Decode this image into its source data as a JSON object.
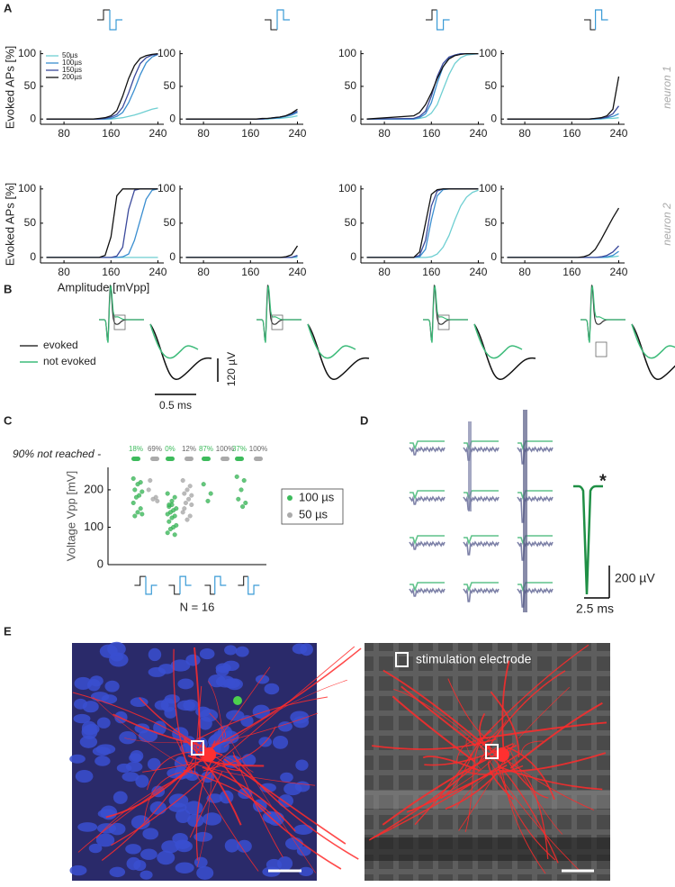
{
  "figure": {
    "panel_letters": [
      "A",
      "B",
      "C",
      "D",
      "E"
    ],
    "b_legend": [
      "evoked",
      "not evoked"
    ],
    "b_scale_v": "120 µV",
    "b_scale_t": "0.5 ms",
    "d_star": "*",
    "d_scale_v": "200 µV",
    "d_scale_t": "2.5 ms",
    "e_label": "stimulation electrode"
  },
  "chart_data": [
    {
      "type": "line",
      "ylabel": "Evoked APs [%]",
      "legend": "upper left",
      "x": [
        50,
        130,
        140,
        150,
        160,
        170,
        180,
        190,
        200,
        210,
        220,
        230,
        240
      ],
      "xlim": [
        40,
        250
      ],
      "ylim": [
        -8,
        105
      ],
      "xticks": [
        80,
        160,
        240
      ],
      "yticks": [
        0,
        50,
        100
      ],
      "series": [
        {
          "name": "50µs",
          "color": "#6fcfd2",
          "values": [
            0,
            0,
            0,
            0,
            0,
            1,
            2,
            4,
            6,
            9,
            12,
            15,
            17
          ]
        },
        {
          "name": "100µs",
          "color": "#3a8ed0",
          "values": [
            0,
            0,
            0,
            0,
            1,
            4,
            10,
            25,
            45,
            68,
            86,
            95,
            99
          ]
        },
        {
          "name": "150µs",
          "color": "#3b4a9c",
          "values": [
            0,
            0,
            0,
            1,
            3,
            7,
            18,
            40,
            65,
            85,
            94,
            98,
            99
          ]
        },
        {
          "name": "200µs",
          "color": "#111111",
          "values": [
            0,
            0,
            1,
            2,
            5,
            13,
            35,
            62,
            82,
            93,
            97,
            99,
            100
          ]
        }
      ]
    },
    {
      "type": "line",
      "x": [
        50,
        130,
        140,
        150,
        160,
        170,
        180,
        190,
        200,
        210,
        220,
        230,
        240
      ],
      "xlim": [
        40,
        250
      ],
      "ylim": [
        -8,
        105
      ],
      "xticks": [
        80,
        160,
        240
      ],
      "yticks": [
        0,
        50,
        100
      ],
      "series": [
        {
          "color": "#6fcfd2",
          "values": [
            0,
            0,
            0,
            0,
            0,
            0,
            0,
            0,
            1,
            1,
            2,
            3,
            5
          ]
        },
        {
          "color": "#3a8ed0",
          "values": [
            0,
            0,
            0,
            0,
            0,
            0,
            0,
            1,
            1,
            2,
            4,
            6,
            10
          ]
        },
        {
          "color": "#3b4a9c",
          "values": [
            0,
            0,
            0,
            0,
            0,
            0,
            0,
            1,
            2,
            3,
            5,
            8,
            12
          ]
        },
        {
          "color": "#111111",
          "values": [
            0,
            0,
            0,
            0,
            0,
            0,
            1,
            1,
            2,
            3,
            5,
            9,
            15
          ]
        }
      ]
    },
    {
      "type": "line",
      "x": [
        50,
        130,
        140,
        150,
        160,
        170,
        180,
        190,
        200,
        210,
        220,
        230,
        240
      ],
      "xlim": [
        40,
        250
      ],
      "ylim": [
        -8,
        105
      ],
      "xticks": [
        80,
        160,
        240
      ],
      "yticks": [
        0,
        50,
        100
      ],
      "series": [
        {
          "color": "#6fcfd2",
          "values": [
            0,
            0,
            1,
            3,
            9,
            22,
            45,
            68,
            85,
            94,
            98,
            99,
            100
          ]
        },
        {
          "color": "#3a8ed0",
          "values": [
            0,
            0,
            2,
            8,
            25,
            55,
            80,
            93,
            98,
            100,
            100,
            100,
            100
          ]
        },
        {
          "color": "#3b4a9c",
          "values": [
            0,
            1,
            4,
            12,
            35,
            65,
            85,
            95,
            98,
            100,
            100,
            100,
            100
          ]
        },
        {
          "color": "#111111",
          "values": [
            0,
            5,
            10,
            22,
            40,
            62,
            80,
            92,
            97,
            99,
            100,
            100,
            100
          ]
        }
      ]
    },
    {
      "type": "line",
      "annotation": "neuron 1",
      "x": [
        50,
        130,
        140,
        150,
        160,
        170,
        180,
        190,
        200,
        210,
        220,
        230,
        240
      ],
      "xlim": [
        40,
        250
      ],
      "ylim": [
        -8,
        105
      ],
      "xticks": [
        80,
        160,
        240
      ],
      "yticks": [
        0,
        50,
        100
      ],
      "series": [
        {
          "color": "#6fcfd2",
          "values": [
            0,
            0,
            0,
            0,
            0,
            0,
            0,
            0,
            0,
            0,
            1,
            1,
            2
          ]
        },
        {
          "color": "#3a8ed0",
          "values": [
            0,
            0,
            0,
            0,
            0,
            0,
            0,
            0,
            0,
            1,
            2,
            4,
            8
          ]
        },
        {
          "color": "#3b4a9c",
          "values": [
            0,
            0,
            0,
            0,
            0,
            0,
            0,
            0,
            1,
            1,
            3,
            8,
            20
          ]
        },
        {
          "color": "#111111",
          "values": [
            0,
            0,
            0,
            0,
            0,
            0,
            0,
            0,
            1,
            2,
            5,
            15,
            65
          ]
        }
      ]
    },
    {
      "type": "line",
      "ylabel": "Evoked APs [%]",
      "xlabel": "Amplitude [mVpp]",
      "x": [
        50,
        130,
        140,
        150,
        160,
        170,
        180,
        190,
        200,
        210,
        220,
        230,
        240
      ],
      "xlim": [
        40,
        250
      ],
      "ylim": [
        -8,
        105
      ],
      "xticks": [
        80,
        160,
        240
      ],
      "yticks": [
        0,
        50,
        100
      ],
      "series": [
        {
          "color": "#6fcfd2",
          "values": [
            0,
            0,
            0,
            0,
            0,
            0,
            0,
            0,
            0,
            0,
            0,
            0,
            0
          ]
        },
        {
          "color": "#3a8ed0",
          "values": [
            0,
            0,
            0,
            0,
            0,
            0,
            1,
            5,
            25,
            55,
            85,
            98,
            100
          ]
        },
        {
          "color": "#3b4a9c",
          "values": [
            0,
            0,
            0,
            0,
            0,
            2,
            15,
            70,
            98,
            100,
            100,
            100,
            100
          ]
        },
        {
          "color": "#111111",
          "values": [
            0,
            0,
            0,
            3,
            30,
            90,
            100,
            100,
            100,
            100,
            100,
            100,
            100
          ]
        }
      ]
    },
    {
      "type": "line",
      "x": [
        50,
        130,
        140,
        150,
        160,
        170,
        180,
        190,
        200,
        210,
        220,
        230,
        240
      ],
      "xlim": [
        40,
        250
      ],
      "ylim": [
        -8,
        105
      ],
      "xticks": [
        80,
        160,
        240
      ],
      "yticks": [
        0,
        50,
        100
      ],
      "series": [
        {
          "color": "#6fcfd2",
          "values": [
            0,
            0,
            0,
            0,
            0,
            0,
            0,
            0,
            0,
            0,
            0,
            0,
            0
          ]
        },
        {
          "color": "#3a8ed0",
          "values": [
            0,
            0,
            0,
            0,
            0,
            0,
            0,
            0,
            0,
            0,
            0,
            0,
            2
          ]
        },
        {
          "color": "#3b4a9c",
          "values": [
            0,
            0,
            0,
            0,
            0,
            0,
            0,
            0,
            0,
            0,
            0,
            0,
            3
          ]
        },
        {
          "color": "#111111",
          "values": [
            0,
            0,
            0,
            0,
            0,
            0,
            0,
            0,
            0,
            0,
            1,
            4,
            17
          ]
        }
      ]
    },
    {
      "type": "line",
      "x": [
        50,
        130,
        140,
        150,
        160,
        170,
        180,
        190,
        200,
        210,
        220,
        230,
        240
      ],
      "xlim": [
        40,
        250
      ],
      "ylim": [
        -8,
        105
      ],
      "xticks": [
        80,
        160,
        240
      ],
      "yticks": [
        0,
        50,
        100
      ],
      "series": [
        {
          "color": "#6fcfd2",
          "values": [
            0,
            0,
            0,
            0,
            1,
            5,
            15,
            32,
            55,
            75,
            88,
            95,
            98
          ]
        },
        {
          "color": "#3a8ed0",
          "values": [
            0,
            0,
            1,
            12,
            55,
            90,
            99,
            100,
            100,
            100,
            100,
            100,
            100
          ]
        },
        {
          "color": "#3b4a9c",
          "values": [
            0,
            0,
            3,
            25,
            75,
            97,
            100,
            100,
            100,
            100,
            100,
            100,
            100
          ]
        },
        {
          "color": "#111111",
          "values": [
            0,
            0,
            8,
            50,
            92,
            99,
            100,
            100,
            100,
            100,
            100,
            100,
            100
          ]
        }
      ]
    },
    {
      "type": "line",
      "annotation": "neuron 2",
      "x": [
        50,
        130,
        140,
        150,
        160,
        170,
        180,
        190,
        200,
        210,
        220,
        230,
        240
      ],
      "xlim": [
        40,
        250
      ],
      "ylim": [
        -8,
        105
      ],
      "xticks": [
        80,
        160,
        240
      ],
      "yticks": [
        0,
        50,
        100
      ],
      "series": [
        {
          "color": "#6fcfd2",
          "values": [
            0,
            0,
            0,
            0,
            0,
            0,
            0,
            0,
            0,
            0,
            0,
            1,
            2
          ]
        },
        {
          "color": "#3a8ed0",
          "values": [
            0,
            0,
            0,
            0,
            0,
            0,
            0,
            0,
            0,
            0,
            1,
            3,
            9
          ]
        },
        {
          "color": "#3b4a9c",
          "values": [
            0,
            0,
            0,
            0,
            0,
            0,
            0,
            0,
            0,
            1,
            3,
            8,
            17
          ]
        },
        {
          "color": "#111111",
          "values": [
            0,
            0,
            0,
            0,
            0,
            0,
            1,
            4,
            12,
            26,
            42,
            58,
            72
          ]
        }
      ]
    },
    {
      "type": "scatter",
      "ylabel": "Voltage Vpp [mV]",
      "note": "N = 16",
      "row_label": "90% not reached -",
      "categories": [
        null,
        null,
        null,
        null
      ],
      "ylim": [
        0,
        260
      ],
      "yticks": [
        0,
        100,
        200
      ],
      "not_reached": [
        [
          "18%",
          "69%"
        ],
        [
          "0%",
          "12%"
        ],
        [
          "87%",
          "100%"
        ],
        [
          "37%",
          "100%"
        ]
      ],
      "series": [
        {
          "name": "100 µs",
          "color": "#3dbb5c",
          "category": [
            0,
            0,
            0,
            0,
            0,
            0,
            0,
            0,
            0,
            0,
            0,
            0,
            1,
            1,
            1,
            1,
            1,
            1,
            1,
            1,
            1,
            1,
            1,
            1,
            1,
            1,
            1,
            1,
            1,
            1,
            2,
            2,
            2,
            3,
            3,
            3,
            3,
            3,
            3
          ],
          "values": [
            230,
            220,
            215,
            200,
            195,
            185,
            180,
            165,
            150,
            140,
            130,
            135,
            190,
            180,
            160,
            155,
            150,
            145,
            140,
            135,
            130,
            125,
            115,
            105,
            100,
            95,
            85,
            80,
            170,
            160,
            215,
            190,
            170,
            235,
            225,
            200,
            175,
            165,
            155
          ]
        },
        {
          "name": "50 µs",
          "color": "#aaaaaa",
          "category": [
            0,
            0,
            0,
            0,
            0,
            1,
            1,
            1,
            1,
            1,
            1,
            1,
            1,
            1,
            1,
            1,
            1
          ],
          "values": [
            200,
            180,
            175,
            225,
            170,
            225,
            210,
            200,
            190,
            185,
            175,
            165,
            140,
            130,
            120,
            150,
            160
          ]
        }
      ]
    }
  ]
}
